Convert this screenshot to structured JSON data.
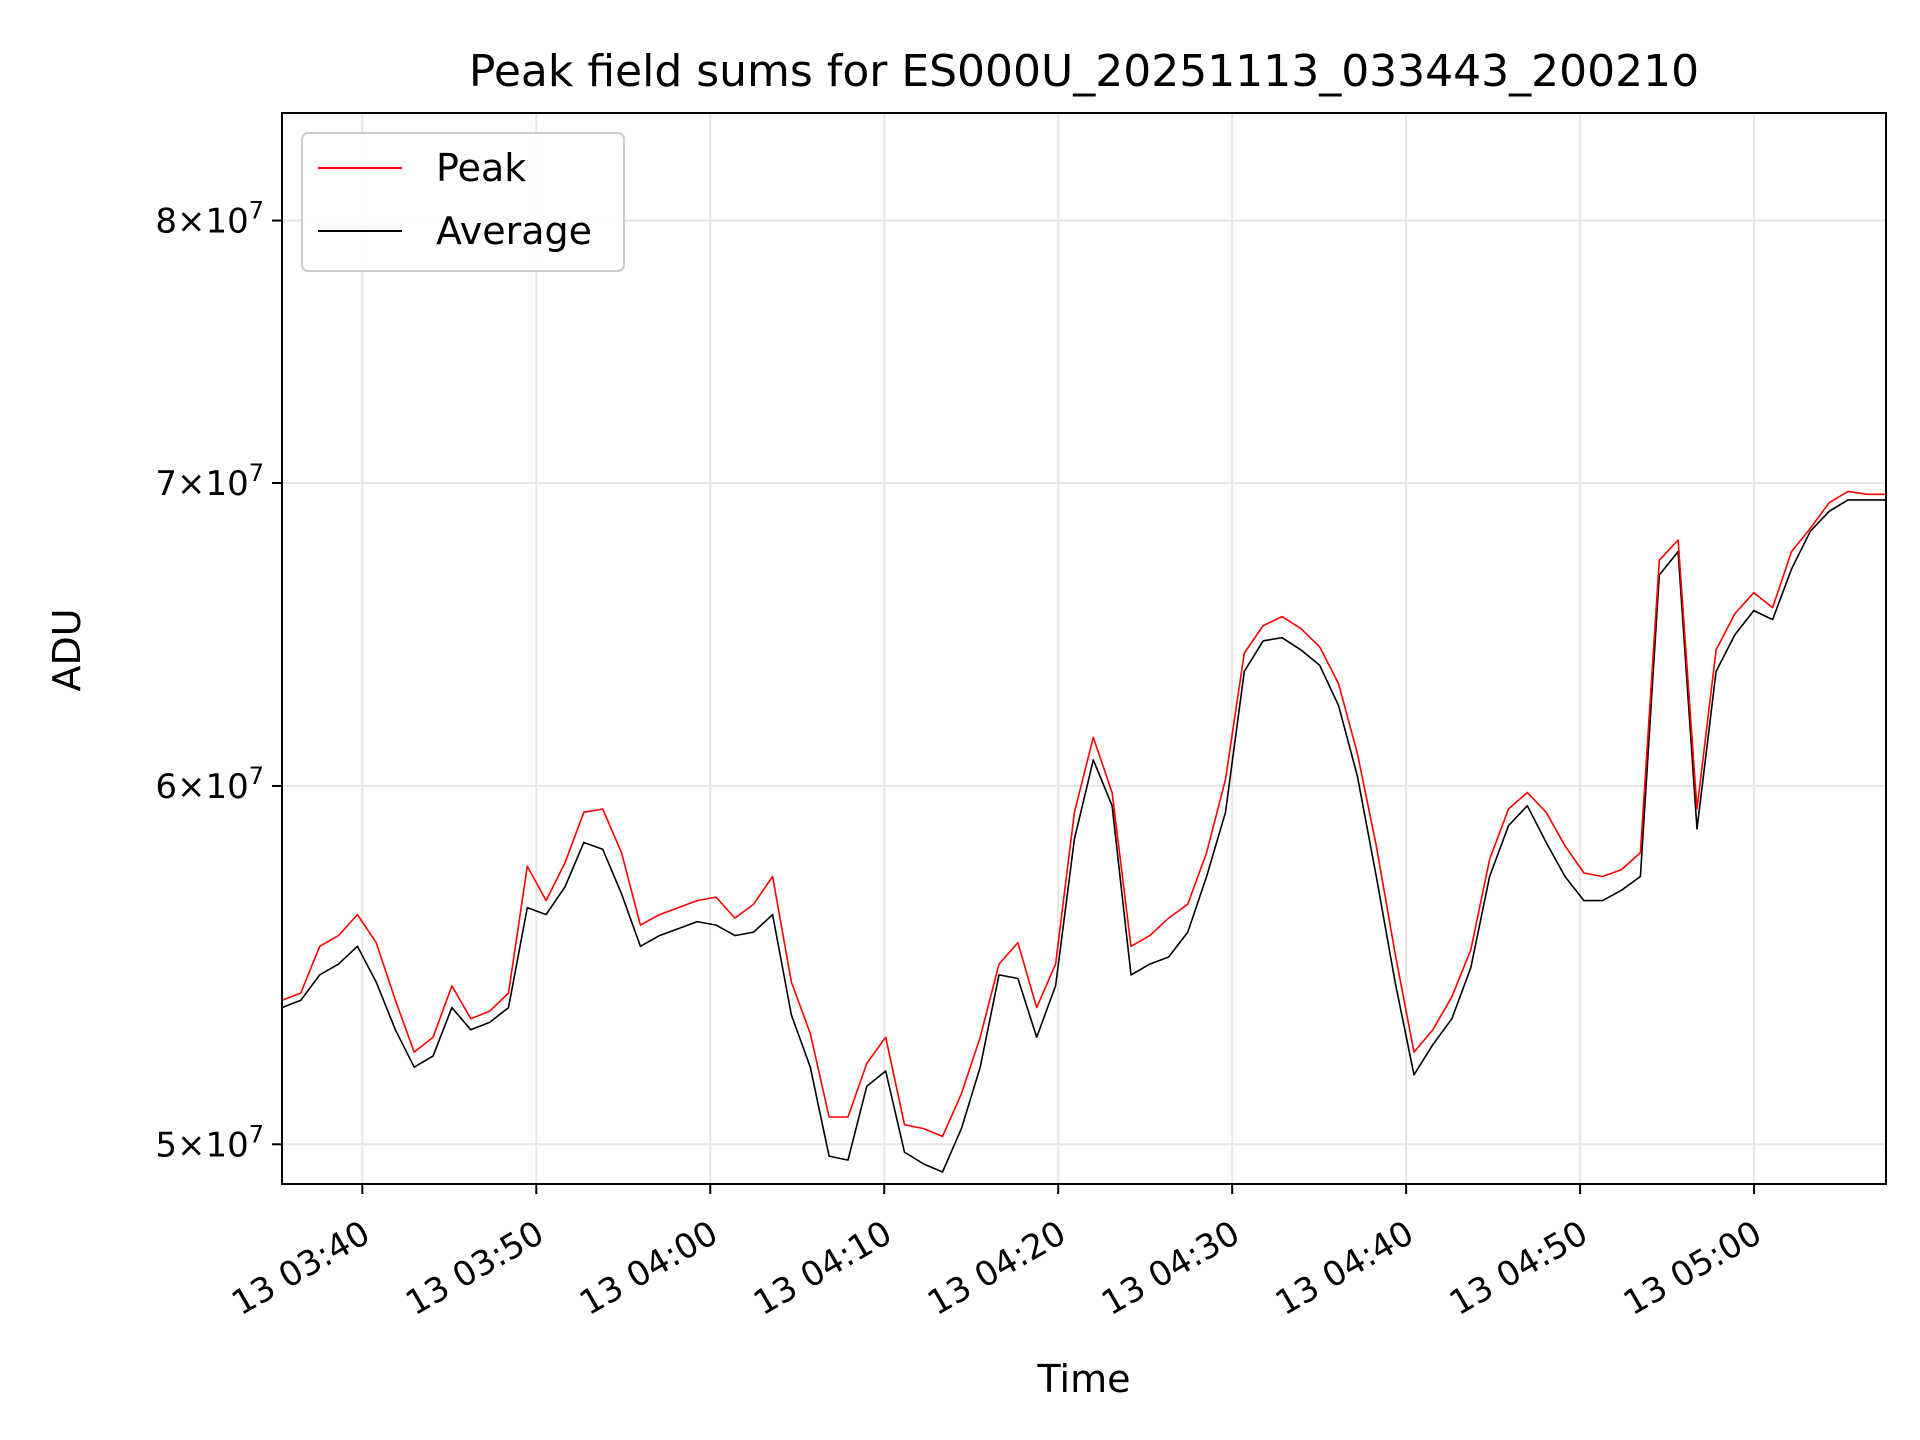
{
  "chart_data": {
    "type": "line",
    "title": "Peak field sums for ES000U_20251113_033443_200210",
    "xlabel": "Time",
    "ylabel": "ADU",
    "yscale": "log",
    "ylim": [
      49000000,
      84500000
    ],
    "xlim": [
      "13 03:35:23",
      "13 05:07:35"
    ],
    "grid": true,
    "legend_position": "top-left",
    "colors": {
      "Peak": "#ff0000",
      "Average": "#000000"
    },
    "x_ticks": [
      "13 03:40",
      "13 03:50",
      "13 04:00",
      "13 04:10",
      "13 04:20",
      "13 04:30",
      "13 04:40",
      "13 04:50",
      "13 05:00"
    ],
    "y_ticks": [
      {
        "value": 50000000,
        "mantissa": "5",
        "base": "10",
        "exp": "7"
      },
      {
        "value": 60000000,
        "mantissa": "6",
        "base": "10",
        "exp": "7"
      },
      {
        "value": 70000000,
        "mantissa": "7",
        "base": "10",
        "exp": "7"
      },
      {
        "value": 80000000,
        "mantissa": "8",
        "base": "10",
        "exp": "7"
      }
    ],
    "x": [
      "13 03:35:23",
      "13 03:36:28",
      "13 03:37:33",
      "13 03:38:38",
      "13 03:39:43",
      "13 03:40:48",
      "13 03:41:54",
      "13 03:42:59",
      "13 03:44:04",
      "13 03:45:09",
      "13 03:46:14",
      "13 03:47:19",
      "13 03:48:24",
      "13 03:49:29",
      "13 03:50:34",
      "13 03:51:39",
      "13 03:52:44",
      "13 03:53:49",
      "13 03:54:54",
      "13 03:55:59",
      "13 03:57:05",
      "13 03:58:10",
      "13 03:59:15",
      "13 04:00:20",
      "13 04:01:25",
      "13 04:02:30",
      "13 04:03:35",
      "13 04:04:40",
      "13 04:05:45",
      "13 04:06:50",
      "13 04:07:55",
      "13 04:09:00",
      "13 04:10:05",
      "13 04:11:10",
      "13 04:12:16",
      "13 04:13:21",
      "13 04:14:26",
      "13 04:15:31",
      "13 04:16:36",
      "13 04:17:41",
      "13 04:18:46",
      "13 04:19:51",
      "13 04:20:56",
      "13 04:22:01",
      "13 04:23:06",
      "13 04:24:11",
      "13 04:25:16",
      "13 04:26:21",
      "13 04:27:27",
      "13 04:28:32",
      "13 04:29:37",
      "13 04:30:42",
      "13 04:31:47",
      "13 04:32:52",
      "13 04:33:57",
      "13 04:35:02",
      "13 04:36:07",
      "13 04:37:12",
      "13 04:38:17",
      "13 04:39:22",
      "13 04:40:27",
      "13 04:41:32",
      "13 04:42:38",
      "13 04:43:43",
      "13 04:44:48",
      "13 04:45:53",
      "13 04:46:58",
      "13 04:48:03",
      "13 04:49:08",
      "13 04:50:13",
      "13 04:51:18",
      "13 04:52:23",
      "13 04:53:28",
      "13 04:54:33",
      "13 04:55:38",
      "13 04:56:43",
      "13 04:57:49",
      "13 04:58:54",
      "13 04:59:59",
      "13 05:01:04",
      "13 05:02:09",
      "13 05:03:14",
      "13 05:04:19",
      "13 05:05:24",
      "13 05:06:29",
      "13 05:07:35"
    ],
    "series": [
      {
        "name": "Peak",
        "values": [
          53800000,
          54000000,
          55300000,
          55600000,
          56200000,
          55400000,
          53800000,
          52400000,
          52800000,
          54200000,
          53300000,
          53500000,
          54000000,
          57600000,
          56600000,
          57700000,
          59200000,
          59300000,
          58000000,
          55900000,
          56200000,
          56400000,
          56600000,
          56700000,
          56100000,
          56500000,
          57300000,
          54300000,
          52900000,
          50700000,
          50700000,
          52100000,
          52800000,
          50500000,
          50400000,
          50200000,
          51300000,
          52800000,
          54800000,
          55400000,
          53600000,
          54800000,
          59200000,
          61500000,
          59800000,
          55300000,
          55600000,
          56100000,
          56500000,
          58000000,
          60200000,
          64200000,
          65100000,
          65400000,
          65000000,
          64400000,
          63200000,
          61000000,
          58200000,
          55100000,
          52400000,
          53000000,
          53900000,
          55200000,
          57800000,
          59300000,
          59800000,
          59200000,
          58200000,
          57400000,
          57300000,
          57500000,
          58000000,
          67300000,
          68000000,
          59300000,
          64300000,
          65500000,
          66200000,
          65700000,
          67600000,
          68400000,
          69300000,
          69700000,
          69600000,
          69600000
        ]
      },
      {
        "name": "Average",
        "values": [
          53600000,
          53800000,
          54500000,
          54800000,
          55300000,
          54300000,
          53000000,
          52000000,
          52300000,
          53600000,
          53000000,
          53200000,
          53600000,
          56400000,
          56200000,
          57000000,
          58300000,
          58100000,
          56800000,
          55300000,
          55600000,
          55800000,
          56000000,
          55900000,
          55600000,
          55700000,
          56200000,
          53400000,
          52000000,
          49700000,
          49600000,
          51500000,
          51900000,
          49800000,
          49500000,
          49300000,
          50400000,
          52000000,
          54500000,
          54400000,
          52800000,
          54200000,
          58400000,
          60800000,
          59400000,
          54500000,
          54800000,
          55000000,
          55700000,
          57300000,
          59200000,
          63600000,
          64600000,
          64700000,
          64300000,
          63800000,
          62500000,
          60300000,
          57300000,
          54300000,
          51800000,
          52600000,
          53300000,
          54700000,
          57300000,
          58800000,
          59400000,
          58300000,
          57300000,
          56600000,
          56600000,
          56900000,
          57300000,
          66800000,
          67600000,
          58700000,
          63600000,
          64800000,
          65600000,
          65300000,
          67000000,
          68300000,
          69000000,
          69400000,
          69400000,
          69400000
        ]
      }
    ]
  }
}
